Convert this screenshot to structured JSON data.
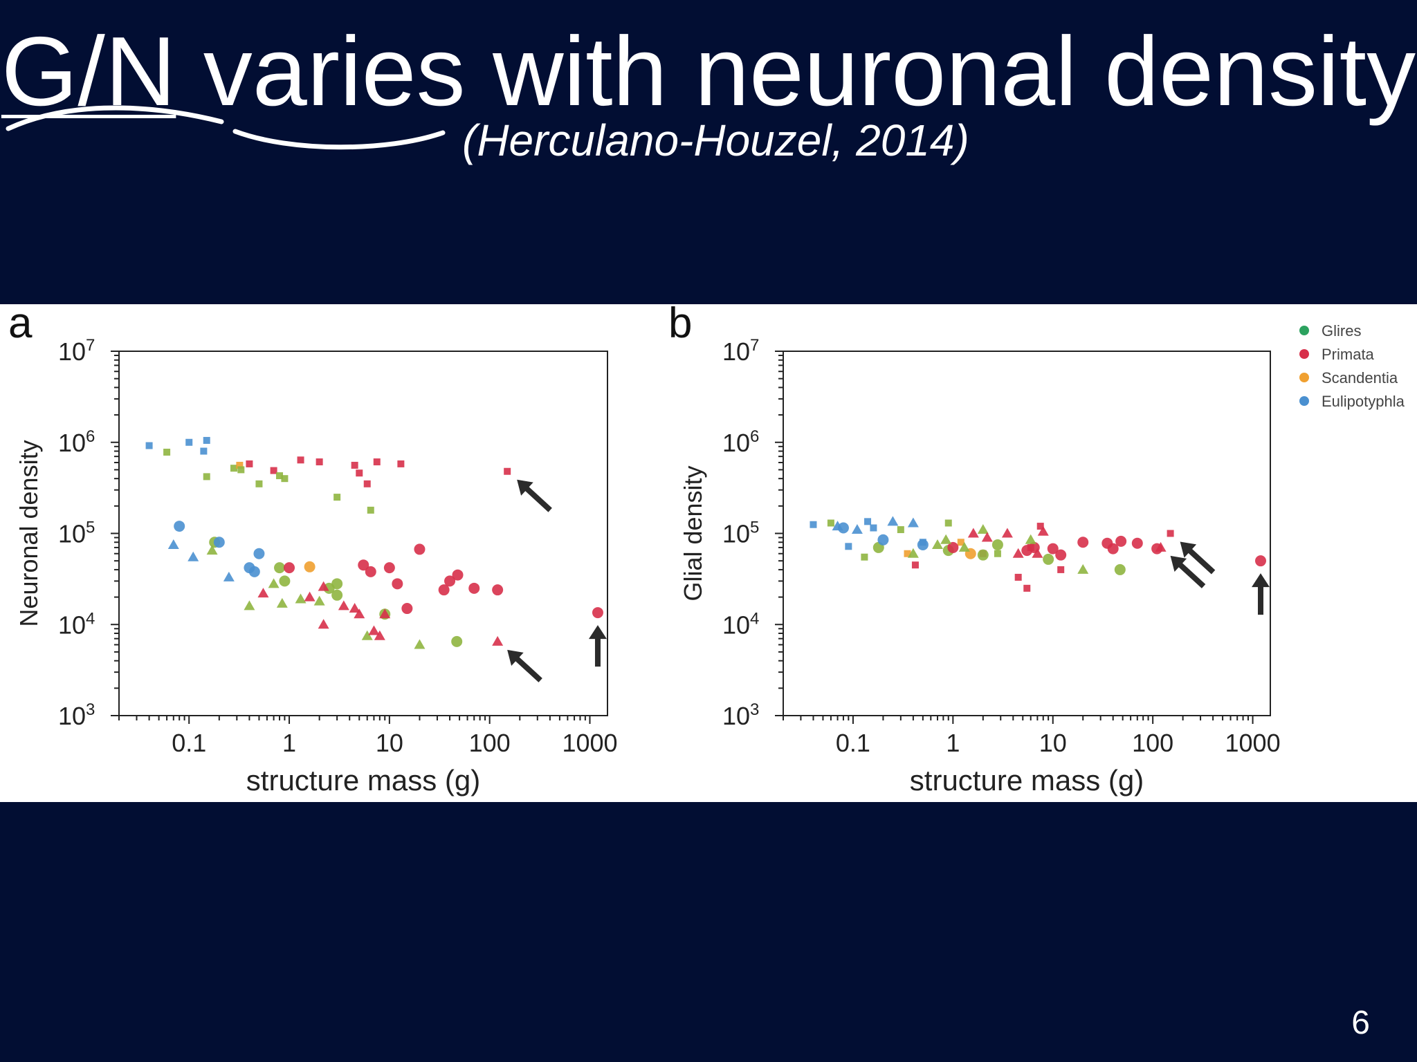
{
  "slide": {
    "title_abbr": "G/N",
    "title_rest": " varies with neuronal density",
    "citation": "(Herculano-Houzel, 2014)",
    "page_number": "6"
  },
  "legend": [
    {
      "label": "Glires",
      "color": "#2ca25f"
    },
    {
      "label": "Primata",
      "color": "#d7304a"
    },
    {
      "label": "Scandentia",
      "color": "#f0a030"
    },
    {
      "label": "Eulipotyphla",
      "color": "#4a90d0"
    }
  ],
  "colors": {
    "background": "#020e33",
    "glires_olive": "#8fb540",
    "arrow": "#2b2b2b"
  },
  "chart_data": [
    {
      "type": "scatter",
      "panel_label": "a",
      "xlabel": "structure mass (g)",
      "ylabel": "Neuronal density",
      "xscale": "log",
      "yscale": "log",
      "xlim": [
        0.02,
        1500
      ],
      "ylim": [
        1000,
        10000000
      ],
      "xticks": [
        0.1,
        1,
        10,
        100,
        1000
      ],
      "xtick_labels": [
        "0.1",
        "1",
        "10",
        "100",
        "1000"
      ],
      "yticks": [
        1000,
        10000,
        100000,
        1000000,
        10000000
      ],
      "ytick_labels": [
        [
          "10",
          "3"
        ],
        [
          "10",
          "4"
        ],
        [
          "10",
          "5"
        ],
        [
          "10",
          "6"
        ],
        [
          "10",
          "7"
        ]
      ],
      "points": [
        {
          "x": 0.04,
          "y": 920000,
          "group": "Eulipotyphla",
          "shape": "square"
        },
        {
          "x": 0.06,
          "y": 780000,
          "group": "Glires",
          "shape": "square"
        },
        {
          "x": 0.1,
          "y": 1000000,
          "group": "Eulipotyphla",
          "shape": "square"
        },
        {
          "x": 0.14,
          "y": 800000,
          "group": "Eulipotyphla",
          "shape": "square"
        },
        {
          "x": 0.15,
          "y": 1050000,
          "group": "Eulipotyphla",
          "shape": "square"
        },
        {
          "x": 0.15,
          "y": 420000,
          "group": "Glires",
          "shape": "square"
        },
        {
          "x": 0.28,
          "y": 520000,
          "group": "Glires",
          "shape": "square"
        },
        {
          "x": 0.32,
          "y": 560000,
          "group": "Scandentia",
          "shape": "square"
        },
        {
          "x": 0.33,
          "y": 500000,
          "group": "Glires",
          "shape": "square"
        },
        {
          "x": 0.4,
          "y": 580000,
          "group": "Primata",
          "shape": "square"
        },
        {
          "x": 0.5,
          "y": 350000,
          "group": "Glires",
          "shape": "square"
        },
        {
          "x": 0.7,
          "y": 490000,
          "group": "Primata",
          "shape": "square"
        },
        {
          "x": 0.8,
          "y": 430000,
          "group": "Glires",
          "shape": "square"
        },
        {
          "x": 0.9,
          "y": 400000,
          "group": "Glires",
          "shape": "square"
        },
        {
          "x": 1.3,
          "y": 640000,
          "group": "Primata",
          "shape": "square"
        },
        {
          "x": 2.0,
          "y": 610000,
          "group": "Primata",
          "shape": "square"
        },
        {
          "x": 3.0,
          "y": 250000,
          "group": "Glires",
          "shape": "square"
        },
        {
          "x": 4.5,
          "y": 560000,
          "group": "Primata",
          "shape": "square"
        },
        {
          "x": 5.0,
          "y": 460000,
          "group": "Primata",
          "shape": "square"
        },
        {
          "x": 6.0,
          "y": 350000,
          "group": "Primata",
          "shape": "square"
        },
        {
          "x": 6.5,
          "y": 180000,
          "group": "Glires",
          "shape": "square"
        },
        {
          "x": 7.5,
          "y": 610000,
          "group": "Primata",
          "shape": "square"
        },
        {
          "x": 13,
          "y": 580000,
          "group": "Primata",
          "shape": "square"
        },
        {
          "x": 150,
          "y": 480000,
          "group": "Primata",
          "shape": "square"
        },
        {
          "x": 0.08,
          "y": 120000,
          "group": "Eulipotyphla",
          "shape": "circle"
        },
        {
          "x": 0.18,
          "y": 80000,
          "group": "Glires",
          "shape": "circle"
        },
        {
          "x": 0.2,
          "y": 80000,
          "group": "Eulipotyphla",
          "shape": "circle"
        },
        {
          "x": 0.4,
          "y": 42000,
          "group": "Eulipotyphla",
          "shape": "circle"
        },
        {
          "x": 0.45,
          "y": 38000,
          "group": "Eulipotyphla",
          "shape": "circle"
        },
        {
          "x": 0.5,
          "y": 60000,
          "group": "Eulipotyphla",
          "shape": "circle"
        },
        {
          "x": 0.8,
          "y": 42000,
          "group": "Glires",
          "shape": "circle"
        },
        {
          "x": 0.9,
          "y": 30000,
          "group": "Glires",
          "shape": "circle"
        },
        {
          "x": 1.0,
          "y": 42000,
          "group": "Primata",
          "shape": "circle"
        },
        {
          "x": 1.6,
          "y": 43000,
          "group": "Scandentia",
          "shape": "circle"
        },
        {
          "x": 2.5,
          "y": 25000,
          "group": "Glires",
          "shape": "circle"
        },
        {
          "x": 3.0,
          "y": 21000,
          "group": "Glires",
          "shape": "circle"
        },
        {
          "x": 3.0,
          "y": 28000,
          "group": "Glires",
          "shape": "circle"
        },
        {
          "x": 5.5,
          "y": 45000,
          "group": "Primata",
          "shape": "circle"
        },
        {
          "x": 6.5,
          "y": 38000,
          "group": "Primata",
          "shape": "circle"
        },
        {
          "x": 9.0,
          "y": 13000,
          "group": "Glires",
          "shape": "circle"
        },
        {
          "x": 10,
          "y": 42000,
          "group": "Primata",
          "shape": "circle"
        },
        {
          "x": 12,
          "y": 28000,
          "group": "Primata",
          "shape": "circle"
        },
        {
          "x": 15,
          "y": 15000,
          "group": "Primata",
          "shape": "circle"
        },
        {
          "x": 20,
          "y": 67000,
          "group": "Primata",
          "shape": "circle"
        },
        {
          "x": 35,
          "y": 24000,
          "group": "Primata",
          "shape": "circle"
        },
        {
          "x": 40,
          "y": 30000,
          "group": "Primata",
          "shape": "circle"
        },
        {
          "x": 47,
          "y": 6500,
          "group": "Glires",
          "shape": "circle"
        },
        {
          "x": 48,
          "y": 35000,
          "group": "Primata",
          "shape": "circle"
        },
        {
          "x": 70,
          "y": 25000,
          "group": "Primata",
          "shape": "circle"
        },
        {
          "x": 120,
          "y": 24000,
          "group": "Primata",
          "shape": "circle"
        },
        {
          "x": 1200,
          "y": 13500,
          "group": "Primata",
          "shape": "circle"
        },
        {
          "x": 0.07,
          "y": 75000,
          "group": "Eulipotyphla",
          "shape": "triangle"
        },
        {
          "x": 0.11,
          "y": 55000,
          "group": "Eulipotyphla",
          "shape": "triangle"
        },
        {
          "x": 0.17,
          "y": 65000,
          "group": "Glires",
          "shape": "triangle"
        },
        {
          "x": 0.25,
          "y": 33000,
          "group": "Eulipotyphla",
          "shape": "triangle"
        },
        {
          "x": 0.4,
          "y": 16000,
          "group": "Glires",
          "shape": "triangle"
        },
        {
          "x": 0.55,
          "y": 22000,
          "group": "Primata",
          "shape": "triangle"
        },
        {
          "x": 0.7,
          "y": 28000,
          "group": "Glires",
          "shape": "triangle"
        },
        {
          "x": 0.85,
          "y": 17000,
          "group": "Glires",
          "shape": "triangle"
        },
        {
          "x": 1.3,
          "y": 19000,
          "group": "Glires",
          "shape": "triangle"
        },
        {
          "x": 1.6,
          "y": 20000,
          "group": "Primata",
          "shape": "triangle"
        },
        {
          "x": 2.0,
          "y": 18000,
          "group": "Glires",
          "shape": "triangle"
        },
        {
          "x": 2.2,
          "y": 26000,
          "group": "Primata",
          "shape": "triangle"
        },
        {
          "x": 2.2,
          "y": 10000,
          "group": "Primata",
          "shape": "triangle"
        },
        {
          "x": 3.5,
          "y": 16000,
          "group": "Primata",
          "shape": "triangle"
        },
        {
          "x": 4.5,
          "y": 15000,
          "group": "Primata",
          "shape": "triangle"
        },
        {
          "x": 5.0,
          "y": 13000,
          "group": "Primata",
          "shape": "triangle"
        },
        {
          "x": 6.0,
          "y": 7500,
          "group": "Glires",
          "shape": "triangle"
        },
        {
          "x": 7.0,
          "y": 8500,
          "group": "Primata",
          "shape": "triangle"
        },
        {
          "x": 8.0,
          "y": 7500,
          "group": "Primata",
          "shape": "triangle"
        },
        {
          "x": 9.0,
          "y": 13000,
          "group": "Primata",
          "shape": "triangle"
        },
        {
          "x": 20,
          "y": 6000,
          "group": "Glires",
          "shape": "triangle"
        },
        {
          "x": 120,
          "y": 6500,
          "group": "Primata",
          "shape": "triangle"
        }
      ],
      "arrows": [
        {
          "x": 150,
          "y": 480000,
          "direction": "up-left"
        },
        {
          "x": 120,
          "y": 6500,
          "direction": "up-left"
        },
        {
          "x": 1200,
          "y": 13500,
          "direction": "up"
        }
      ]
    },
    {
      "type": "scatter",
      "panel_label": "b",
      "xlabel": "structure mass (g)",
      "ylabel": "Glial density",
      "xscale": "log",
      "yscale": "log",
      "xlim": [
        0.02,
        1500
      ],
      "ylim": [
        1000,
        10000000
      ],
      "xticks": [
        0.1,
        1,
        10,
        100,
        1000
      ],
      "xtick_labels": [
        "0.1",
        "1",
        "10",
        "100",
        "1000"
      ],
      "yticks": [
        1000,
        10000,
        100000,
        1000000,
        10000000
      ],
      "ytick_labels": [
        [
          "10",
          "3"
        ],
        [
          "10",
          "4"
        ],
        [
          "10",
          "5"
        ],
        [
          "10",
          "6"
        ],
        [
          "10",
          "7"
        ]
      ],
      "points": [
        {
          "x": 0.04,
          "y": 125000,
          "group": "Eulipotyphla",
          "shape": "square"
        },
        {
          "x": 0.06,
          "y": 130000,
          "group": "Glires",
          "shape": "square"
        },
        {
          "x": 0.09,
          "y": 72000,
          "group": "Eulipotyphla",
          "shape": "square"
        },
        {
          "x": 0.13,
          "y": 55000,
          "group": "Glires",
          "shape": "square"
        },
        {
          "x": 0.14,
          "y": 135000,
          "group": "Eulipotyphla",
          "shape": "square"
        },
        {
          "x": 0.16,
          "y": 115000,
          "group": "Eulipotyphla",
          "shape": "square"
        },
        {
          "x": 0.3,
          "y": 110000,
          "group": "Glires",
          "shape": "square"
        },
        {
          "x": 0.35,
          "y": 60000,
          "group": "Scandentia",
          "shape": "square"
        },
        {
          "x": 0.42,
          "y": 45000,
          "group": "Primata",
          "shape": "square"
        },
        {
          "x": 0.5,
          "y": 80000,
          "group": "Eulipotyphla",
          "shape": "square"
        },
        {
          "x": 0.9,
          "y": 130000,
          "group": "Glires",
          "shape": "square"
        },
        {
          "x": 1.2,
          "y": 80000,
          "group": "Scandentia",
          "shape": "square"
        },
        {
          "x": 2.0,
          "y": 60000,
          "group": "Primata",
          "shape": "square"
        },
        {
          "x": 2.8,
          "y": 60000,
          "group": "Glires",
          "shape": "square"
        },
        {
          "x": 4.5,
          "y": 33000,
          "group": "Primata",
          "shape": "square"
        },
        {
          "x": 5.5,
          "y": 25000,
          "group": "Primata",
          "shape": "square"
        },
        {
          "x": 6.0,
          "y": 70000,
          "group": "Primata",
          "shape": "square"
        },
        {
          "x": 7.5,
          "y": 120000,
          "group": "Primata",
          "shape": "square"
        },
        {
          "x": 12,
          "y": 40000,
          "group": "Primata",
          "shape": "square"
        },
        {
          "x": 150,
          "y": 100000,
          "group": "Primata",
          "shape": "square"
        },
        {
          "x": 0.08,
          "y": 115000,
          "group": "Eulipotyphla",
          "shape": "circle"
        },
        {
          "x": 0.18,
          "y": 70000,
          "group": "Glires",
          "shape": "circle"
        },
        {
          "x": 0.2,
          "y": 85000,
          "group": "Eulipotyphla",
          "shape": "circle"
        },
        {
          "x": 0.5,
          "y": 75000,
          "group": "Eulipotyphla",
          "shape": "circle"
        },
        {
          "x": 0.9,
          "y": 65000,
          "group": "Glires",
          "shape": "circle"
        },
        {
          "x": 1.0,
          "y": 70000,
          "group": "Primata",
          "shape": "circle"
        },
        {
          "x": 1.5,
          "y": 60000,
          "group": "Scandentia",
          "shape": "circle"
        },
        {
          "x": 2.0,
          "y": 58000,
          "group": "Glires",
          "shape": "circle"
        },
        {
          "x": 2.8,
          "y": 75000,
          "group": "Glires",
          "shape": "circle"
        },
        {
          "x": 5.5,
          "y": 65000,
          "group": "Primata",
          "shape": "circle"
        },
        {
          "x": 6.5,
          "y": 70000,
          "group": "Primata",
          "shape": "circle"
        },
        {
          "x": 9.0,
          "y": 52000,
          "group": "Glires",
          "shape": "circle"
        },
        {
          "x": 10,
          "y": 68000,
          "group": "Primata",
          "shape": "circle"
        },
        {
          "x": 12,
          "y": 58000,
          "group": "Primata",
          "shape": "circle"
        },
        {
          "x": 20,
          "y": 80000,
          "group": "Primata",
          "shape": "circle"
        },
        {
          "x": 35,
          "y": 78000,
          "group": "Primata",
          "shape": "circle"
        },
        {
          "x": 40,
          "y": 68000,
          "group": "Primata",
          "shape": "circle"
        },
        {
          "x": 47,
          "y": 40000,
          "group": "Glires",
          "shape": "circle"
        },
        {
          "x": 48,
          "y": 82000,
          "group": "Primata",
          "shape": "circle"
        },
        {
          "x": 70,
          "y": 78000,
          "group": "Primata",
          "shape": "circle"
        },
        {
          "x": 110,
          "y": 68000,
          "group": "Primata",
          "shape": "circle"
        },
        {
          "x": 1200,
          "y": 50000,
          "group": "Primata",
          "shape": "circle"
        },
        {
          "x": 0.07,
          "y": 120000,
          "group": "Eulipotyphla",
          "shape": "triangle"
        },
        {
          "x": 0.11,
          "y": 110000,
          "group": "Eulipotyphla",
          "shape": "triangle"
        },
        {
          "x": 0.25,
          "y": 135000,
          "group": "Eulipotyphla",
          "shape": "triangle"
        },
        {
          "x": 0.4,
          "y": 130000,
          "group": "Eulipotyphla",
          "shape": "triangle"
        },
        {
          "x": 0.4,
          "y": 60000,
          "group": "Glires",
          "shape": "triangle"
        },
        {
          "x": 0.7,
          "y": 75000,
          "group": "Glires",
          "shape": "triangle"
        },
        {
          "x": 0.85,
          "y": 85000,
          "group": "Glires",
          "shape": "triangle"
        },
        {
          "x": 1.3,
          "y": 70000,
          "group": "Glires",
          "shape": "triangle"
        },
        {
          "x": 1.6,
          "y": 100000,
          "group": "Primata",
          "shape": "triangle"
        },
        {
          "x": 2.0,
          "y": 110000,
          "group": "Glires",
          "shape": "triangle"
        },
        {
          "x": 2.2,
          "y": 90000,
          "group": "Primata",
          "shape": "triangle"
        },
        {
          "x": 3.5,
          "y": 100000,
          "group": "Primata",
          "shape": "triangle"
        },
        {
          "x": 4.5,
          "y": 60000,
          "group": "Primata",
          "shape": "triangle"
        },
        {
          "x": 6.0,
          "y": 85000,
          "group": "Glires",
          "shape": "triangle"
        },
        {
          "x": 7.0,
          "y": 60000,
          "group": "Primata",
          "shape": "triangle"
        },
        {
          "x": 8.0,
          "y": 105000,
          "group": "Primata",
          "shape": "triangle"
        },
        {
          "x": 20,
          "y": 40000,
          "group": "Glires",
          "shape": "triangle"
        },
        {
          "x": 120,
          "y": 70000,
          "group": "Primata",
          "shape": "triangle"
        }
      ],
      "arrows": [
        {
          "x": 150,
          "y": 100000,
          "direction": "up-left"
        },
        {
          "x": 120,
          "y": 70000,
          "direction": "up-left"
        },
        {
          "x": 1200,
          "y": 50000,
          "direction": "up"
        }
      ]
    }
  ]
}
